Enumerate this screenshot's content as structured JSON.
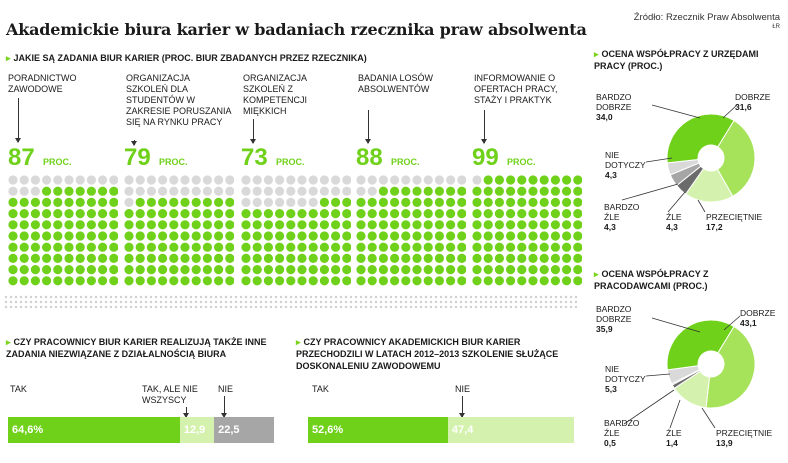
{
  "title": "Akademickie biura karier w badaniach rzecznika praw absolwenta",
  "source": "Źródło: Rzecznik Praw Absolwenta",
  "source_initials": "ŁR",
  "tasks": {
    "heading": "Jakie są zadania biur karier (proc. biur zbadanych przez rzecznika)",
    "unit": "PROC.",
    "items": [
      {
        "label": "PORADNICTWO ZAWODOWE",
        "value": 87
      },
      {
        "label": "ORGANIZACJA SZKOLEŃ DLA STUDENTÓW W ZAKRESIE PORUSZANIA SIĘ NA RYNKU PRACY",
        "value": 79
      },
      {
        "label": "ORGANIZACJA SZKOLEŃ Z KOMPETENCJI MIĘKKICH",
        "value": 73
      },
      {
        "label": "BADANIA LOSÓW ABSOLWENTÓW",
        "value": 88
      },
      {
        "label": "INFORMOWANIE O OFERTACH PRACY, STAŻY I PRAKTYK",
        "value": 99
      }
    ]
  },
  "other_tasks": {
    "heading": "Czy pracownicy biur karier realizują także inne zadania niezwiązane z działalnością biura",
    "labels": [
      "TAK",
      "TAK, ALE NIE WSZYSCY",
      "NIE"
    ],
    "values": [
      "64,6%",
      "12,9",
      "22,5"
    ]
  },
  "training": {
    "heading": "Czy pracownicy akademickich biur karier przechodzili w latach 2012–2013 szkolenie służące doskonaleniu zawodowemu",
    "labels": [
      "TAK",
      "NIE"
    ],
    "values": [
      "52,6%",
      "47,4"
    ]
  },
  "pie1": {
    "heading": "Ocena współpracy z urzędami pracy (proc.)",
    "labels": [
      "BARDZO DOBRZE",
      "DOBRZE",
      "PRZECIĘTNIE",
      "ŹLE",
      "BARDZO ŹLE",
      "NIE DOTYCZY"
    ],
    "values": [
      "34,0",
      "31,6",
      "17,2",
      "4,3",
      "4,3",
      "4,3"
    ]
  },
  "pie2": {
    "heading": "Ocena współpracy z pracodawcami (proc.)",
    "labels": [
      "BARDZO DOBRZE",
      "DOBRZE",
      "PRZECIĘTNIE",
      "ŹLE",
      "BARDZO ŹLE",
      "NIE DOTYCZY"
    ],
    "values": [
      "35,9",
      "43,1",
      "13,9",
      "1,4",
      "0,5",
      "5,3"
    ]
  },
  "colors": {
    "green": "#6fd11a",
    "mid_green": "#a6e35a",
    "light_green": "#d4f2ad",
    "grey_dot": "#d9d9d9",
    "grey": "#a6a6a6",
    "dark_grey": "#6b6b6b"
  },
  "chart_data": [
    {
      "type": "bar",
      "title": "Jakie są zadania biur karier (proc. biur zbadanych przez rzecznika)",
      "categories": [
        "PORADNICTWO ZAWODOWE",
        "ORGANIZACJA SZKOLEŃ DLA STUDENTÓW W ZAKRESIE PORUSZANIA SIĘ NA RYNKU PRACY",
        "ORGANIZACJA SZKOLEŃ Z KOMPETENCJI MIĘKKICH",
        "BADANIA LOSÓW ABSOLWENTÓW",
        "INFORMOWANIE O OFERTACH PRACY, STAŻY I PRAKTYK"
      ],
      "values": [
        87,
        79,
        73,
        88,
        99
      ],
      "unit": "PROC."
    },
    {
      "type": "bar",
      "title": "Czy pracownicy biur karier realizują także inne zadania niezwiązane z działalnością biura",
      "categories": [
        "TAK",
        "TAK, ALE NIE WSZYSCY",
        "NIE"
      ],
      "values": [
        64.6,
        12.9,
        22.5
      ]
    },
    {
      "type": "bar",
      "title": "Czy pracownicy akademickich biur karier przechodzili w latach 2012–2013 szkolenie służące doskonaleniu zawodowemu",
      "categories": [
        "TAK",
        "NIE"
      ],
      "values": [
        52.6,
        47.4
      ]
    },
    {
      "type": "pie",
      "title": "Ocena współpracy z urzędami pracy (proc.)",
      "categories": [
        "BARDZO DOBRZE",
        "DOBRZE",
        "PRZECIĘTNIE",
        "ŹLE",
        "BARDZO ŹLE",
        "NIE DOTYCZY"
      ],
      "values": [
        34.0,
        31.6,
        17.2,
        4.3,
        4.3,
        4.3
      ]
    },
    {
      "type": "pie",
      "title": "Ocena współpracy z pracodawcami (proc.)",
      "categories": [
        "BARDZO DOBRZE",
        "DOBRZE",
        "PRZECIĘTNIE",
        "ŹLE",
        "BARDZO ŹLE",
        "NIE DOTYCZY"
      ],
      "values": [
        35.9,
        43.1,
        13.9,
        1.4,
        0.5,
        5.3
      ]
    }
  ]
}
